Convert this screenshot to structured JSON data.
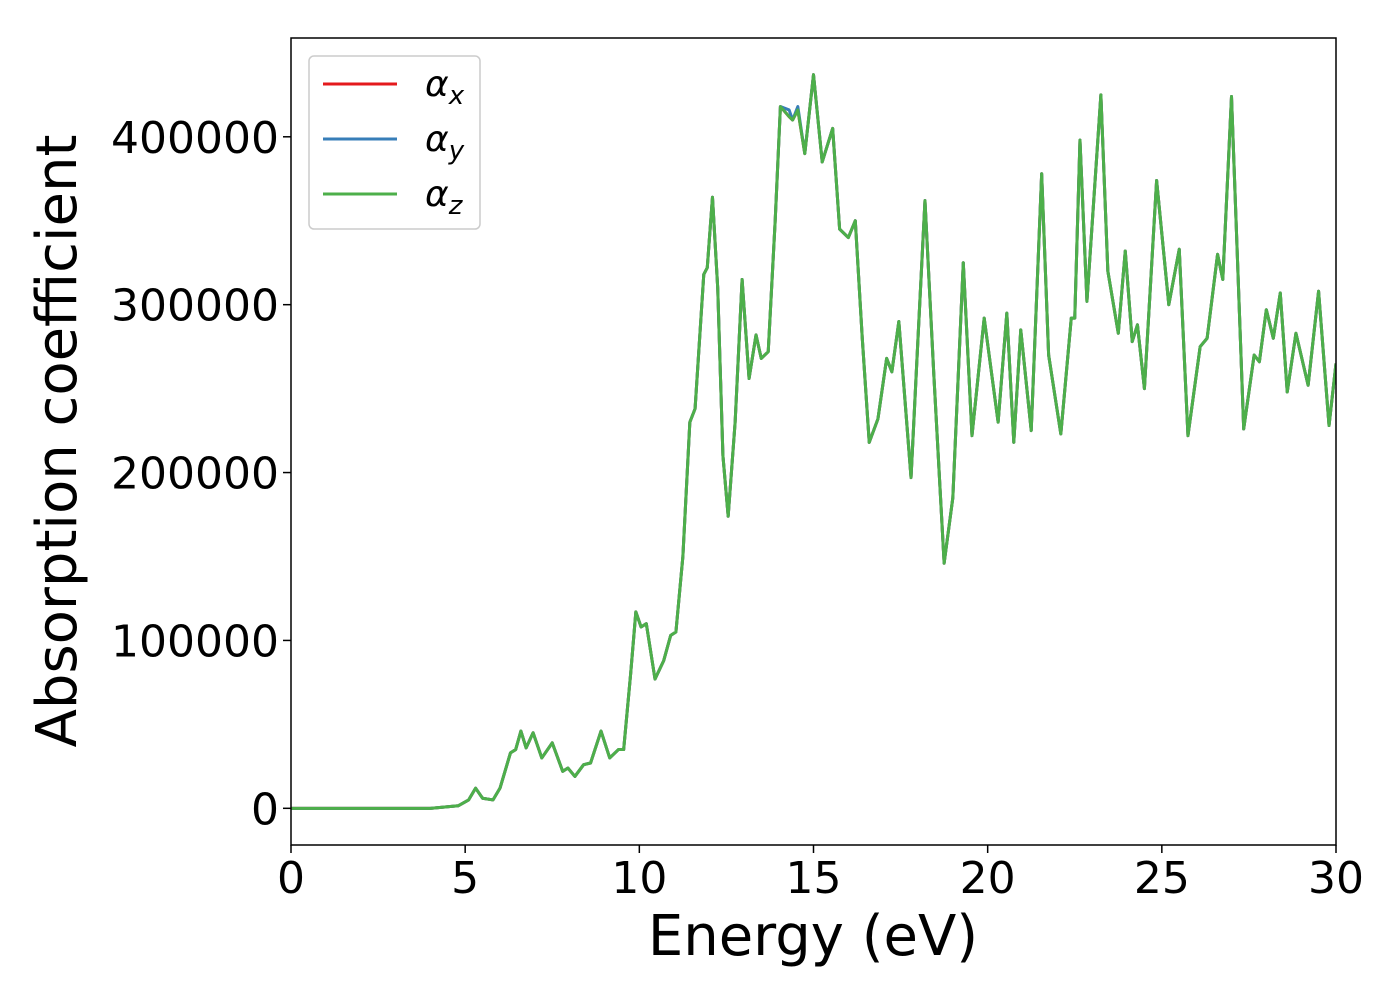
{
  "chart_data": {
    "type": "line",
    "xlabel": "Energy (eV)",
    "ylabel": "Absorption coefficient",
    "x": [
      0,
      4,
      4.8,
      5.1,
      5.3,
      5.5,
      5.8,
      6.0,
      6.3,
      6.45,
      6.6,
      6.75,
      6.95,
      7.2,
      7.5,
      7.8,
      7.95,
      8.15,
      8.4,
      8.6,
      8.9,
      9.15,
      9.4,
      9.55,
      9.75,
      9.9,
      10.05,
      10.2,
      10.45,
      10.7,
      10.9,
      11.05,
      11.25,
      11.45,
      11.6,
      11.85,
      11.95,
      12.1,
      12.25,
      12.4,
      12.55,
      12.75,
      12.95,
      13.15,
      13.35,
      13.5,
      13.7,
      13.9,
      14.05,
      14.3,
      14.4,
      14.55,
      14.75,
      15.0,
      15.25,
      15.55,
      15.75,
      16.0,
      16.2,
      16.4,
      16.6,
      16.85,
      17.1,
      17.25,
      17.45,
      17.6,
      17.8,
      18.0,
      18.2,
      18.45,
      18.75,
      19.0,
      19.3,
      19.55,
      19.9,
      20.3,
      20.55,
      20.75,
      20.95,
      21.25,
      21.55,
      21.75,
      22.1,
      22.4,
      22.5,
      22.65,
      22.85,
      23.25,
      23.45,
      23.75,
      23.95,
      24.15,
      24.3,
      24.5,
      24.85,
      25.2,
      25.5,
      25.75,
      26.1,
      26.3,
      26.6,
      26.75,
      27.0,
      27.35,
      27.65,
      27.8,
      28.0,
      28.2,
      28.4,
      28.6,
      28.85,
      29.2,
      29.5,
      29.8,
      30.0
    ],
    "series": [
      {
        "name": "αx",
        "color": "#e41a1c",
        "values": [
          0,
          0,
          1500,
          5000,
          12000,
          6000,
          5000,
          12000,
          33000,
          35000,
          46000,
          36000,
          45000,
          30000,
          39000,
          22000,
          24000,
          19000,
          26000,
          27000,
          46000,
          30000,
          35000,
          35000,
          80000,
          117000,
          108000,
          110000,
          77000,
          88000,
          103000,
          105000,
          150000,
          230000,
          238000,
          318000,
          322000,
          364000,
          310000,
          210000,
          174000,
          230000,
          315000,
          256000,
          282000,
          268000,
          272000,
          350000,
          418000,
          412000,
          410000,
          416000,
          390000,
          437000,
          385000,
          405000,
          345000,
          340000,
          350000,
          280000,
          218000,
          232000,
          268000,
          260000,
          290000,
          250000,
          197000,
          280000,
          362000,
          260000,
          146000,
          185000,
          325000,
          222000,
          292000,
          230000,
          295000,
          218000,
          285000,
          225000,
          378000,
          270000,
          223000,
          292000,
          292000,
          398000,
          302000,
          425000,
          320000,
          283000,
          332000,
          278000,
          288000,
          250000,
          374000,
          300000,
          333000,
          222000,
          275000,
          280000,
          330000,
          315000,
          424000,
          226000,
          270000,
          266000,
          297000,
          280000,
          307000,
          248000,
          283000,
          252000,
          308000,
          228000,
          265000
        ]
      },
      {
        "name": "αy",
        "color": "#377eb8",
        "values": [
          0,
          0,
          1500,
          5000,
          12000,
          6000,
          5000,
          12000,
          33000,
          35000,
          46000,
          36000,
          45000,
          30000,
          39000,
          22000,
          24000,
          19000,
          26000,
          27000,
          46000,
          30000,
          35000,
          35000,
          80000,
          117000,
          108000,
          110000,
          77000,
          88000,
          103000,
          105000,
          150000,
          230000,
          238000,
          318000,
          322000,
          364000,
          310000,
          210000,
          174000,
          230000,
          315000,
          256000,
          282000,
          268000,
          272000,
          350000,
          418000,
          416000,
          410000,
          418000,
          390000,
          437000,
          385000,
          405000,
          345000,
          340000,
          350000,
          280000,
          218000,
          232000,
          268000,
          260000,
          290000,
          250000,
          197000,
          280000,
          362000,
          260000,
          146000,
          185000,
          325000,
          222000,
          292000,
          230000,
          295000,
          218000,
          285000,
          225000,
          378000,
          270000,
          223000,
          292000,
          292000,
          398000,
          302000,
          425000,
          320000,
          283000,
          332000,
          278000,
          288000,
          250000,
          374000,
          300000,
          333000,
          222000,
          275000,
          280000,
          330000,
          315000,
          424000,
          226000,
          270000,
          266000,
          297000,
          280000,
          307000,
          248000,
          283000,
          252000,
          308000,
          228000,
          265000
        ]
      },
      {
        "name": "αz",
        "color": "#4daf4a",
        "values": [
          0,
          0,
          1500,
          5000,
          12000,
          6000,
          5000,
          12000,
          33000,
          35000,
          46000,
          36000,
          45000,
          30000,
          39000,
          22000,
          24000,
          19000,
          26000,
          27000,
          46000,
          30000,
          35000,
          35000,
          80000,
          117000,
          108000,
          110000,
          77000,
          88000,
          103000,
          105000,
          150000,
          230000,
          238000,
          318000,
          322000,
          364000,
          310000,
          210000,
          174000,
          230000,
          315000,
          256000,
          282000,
          268000,
          272000,
          350000,
          418000,
          412000,
          410000,
          416000,
          390000,
          437000,
          385000,
          405000,
          345000,
          340000,
          350000,
          280000,
          218000,
          232000,
          268000,
          260000,
          290000,
          250000,
          197000,
          280000,
          362000,
          260000,
          146000,
          185000,
          325000,
          222000,
          292000,
          230000,
          295000,
          218000,
          285000,
          225000,
          378000,
          270000,
          223000,
          292000,
          292000,
          398000,
          302000,
          425000,
          320000,
          283000,
          332000,
          278000,
          288000,
          250000,
          374000,
          300000,
          333000,
          222000,
          275000,
          280000,
          330000,
          315000,
          424000,
          226000,
          270000,
          266000,
          297000,
          280000,
          307000,
          248000,
          283000,
          252000,
          308000,
          228000,
          265000
        ]
      }
    ],
    "xlim": [
      0,
      30
    ],
    "xticks": [
      0,
      5,
      10,
      15,
      20,
      25,
      30
    ],
    "ylim": [
      -21850,
      458850
    ],
    "yticks": [
      0,
      100000,
      200000,
      300000,
      400000
    ],
    "legend": "upper left"
  }
}
